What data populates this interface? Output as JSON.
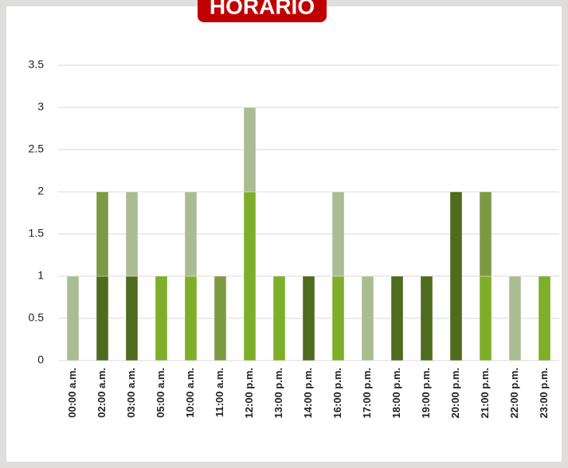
{
  "chart_data": {
    "type": "stacked_bar",
    "title": "HORARIO",
    "categories": [
      "00:00 a.m.",
      "02:00 a.m.",
      "03:00 a.m.",
      "05:00 a.m.",
      "10:00 a.m.",
      "11:00 a.m.",
      "12:00 p.m.",
      "13:00 p.m.",
      "14:00 p.m.",
      "16:00 p.m.",
      "17:00 p.m.",
      "18:00 p.m.",
      "19:00 p.m.",
      "20:00 p.m.",
      "21:00 p.m.",
      "22:00 p.m.",
      "23:00 p.m."
    ],
    "series": [
      {
        "color": "#4f6b1e",
        "values": [
          0,
          1,
          1,
          0,
          0,
          0,
          0,
          0,
          1,
          0,
          0,
          1,
          1,
          2,
          0,
          0,
          0
        ]
      },
      {
        "color": "#7fae2a",
        "values": [
          0,
          0,
          0,
          1,
          1,
          0,
          2,
          1,
          0,
          1,
          0,
          0,
          0,
          0,
          1,
          0,
          1
        ]
      },
      {
        "color": "#7c9a44",
        "values": [
          0,
          1,
          0,
          0,
          0,
          1,
          0,
          0,
          0,
          0,
          0,
          0,
          0,
          0,
          1,
          0,
          0
        ]
      },
      {
        "color": "#aabd92",
        "values": [
          1,
          0,
          1,
          0,
          1,
          0,
          1,
          0,
          0,
          1,
          1,
          0,
          0,
          0,
          0,
          1,
          0
        ]
      }
    ],
    "ylim": [
      0,
      3.5
    ],
    "yticks": [
      0,
      0.5,
      1,
      1.5,
      2,
      2.5,
      3,
      3.5
    ],
    "grid": true
  }
}
